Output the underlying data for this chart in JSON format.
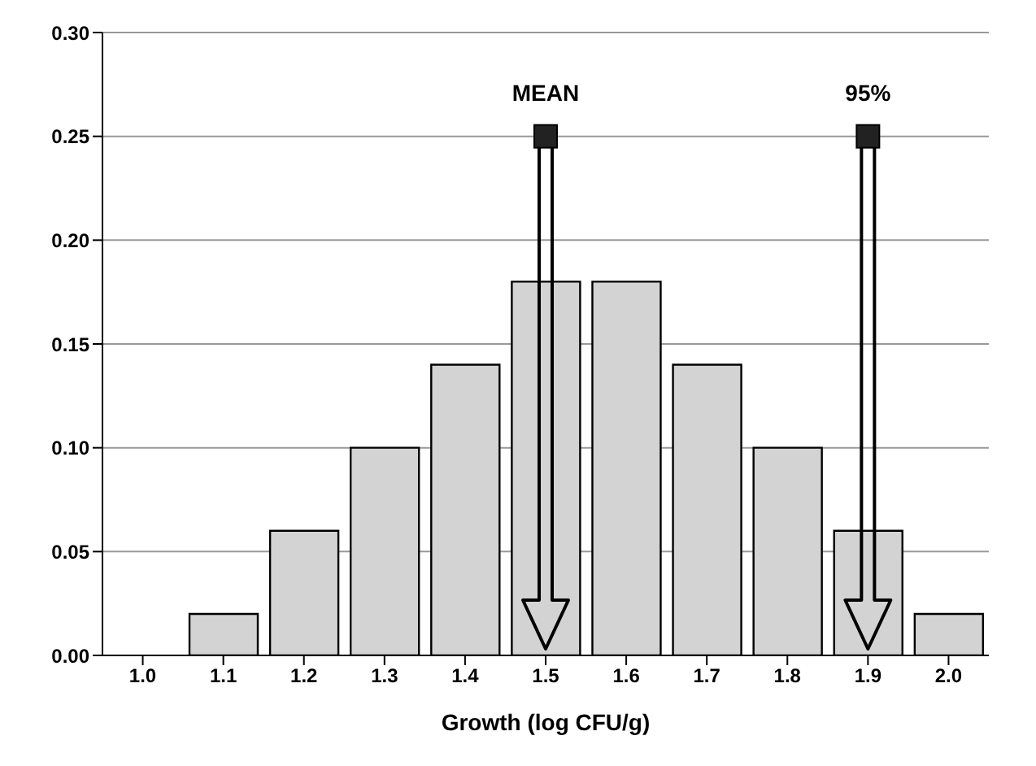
{
  "chart_data": {
    "type": "bar",
    "xlabel": "Growth (log CFU/g)",
    "categories": [
      "1.0",
      "1.1",
      "1.2",
      "1.3",
      "1.4",
      "1.5",
      "1.6",
      "1.7",
      "1.8",
      "1.9",
      "2.0"
    ],
    "values": [
      0,
      0.02,
      0.06,
      0.1,
      0.14,
      0.18,
      0.18,
      0.14,
      0.1,
      0.06,
      0.02
    ],
    "color": "#d3d3d3",
    "ylim": [
      0,
      0.3
    ],
    "yticks": [
      {
        "value": 0,
        "label": "0.00"
      },
      {
        "value": 0.05,
        "label": "0.05"
      },
      {
        "value": 0.1,
        "label": "0.10"
      },
      {
        "value": 0.15,
        "label": "0.15"
      },
      {
        "value": 0.2,
        "label": "0.20"
      },
      {
        "value": 0.25,
        "label": "0.25"
      },
      {
        "value": 0.3,
        "label": "0.30"
      }
    ],
    "grid": "y",
    "annotations": [
      {
        "text": "MEAN",
        "x": "1.5",
        "y": 0.25
      },
      {
        "text": "95%",
        "x": "1.9",
        "y": 0.25
      }
    ]
  }
}
